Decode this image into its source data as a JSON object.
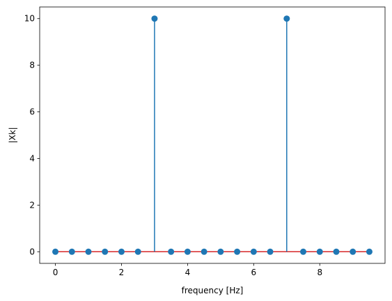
{
  "chart_data": {
    "type": "stem",
    "xlabel": "frequency [Hz]",
    "ylabel": "|Xk|",
    "x": [
      0,
      0.5,
      1,
      1.5,
      2,
      2.5,
      3,
      3.5,
      4,
      4.5,
      5,
      5.5,
      6,
      6.5,
      7,
      7.5,
      8,
      8.5,
      9,
      9.5
    ],
    "values": [
      0,
      0,
      0,
      0,
      0,
      0,
      10,
      0,
      0,
      0,
      0,
      0,
      0,
      0,
      10,
      0,
      0,
      0,
      0,
      0
    ],
    "xlim": [
      -0.475,
      9.975
    ],
    "ylim": [
      -0.5,
      10.5
    ],
    "xticks": [
      0,
      2,
      4,
      6,
      8
    ],
    "yticks": [
      0,
      2,
      4,
      6,
      8,
      10
    ],
    "xtick_labels": [
      "0",
      "2",
      "4",
      "6",
      "8"
    ],
    "ytick_labels": [
      "0",
      "2",
      "4",
      "6",
      "8",
      "10"
    ],
    "grid": false,
    "colors": {
      "stem": "#1f77b4",
      "marker": "#1f77b4",
      "baseline": "#d62728"
    }
  }
}
